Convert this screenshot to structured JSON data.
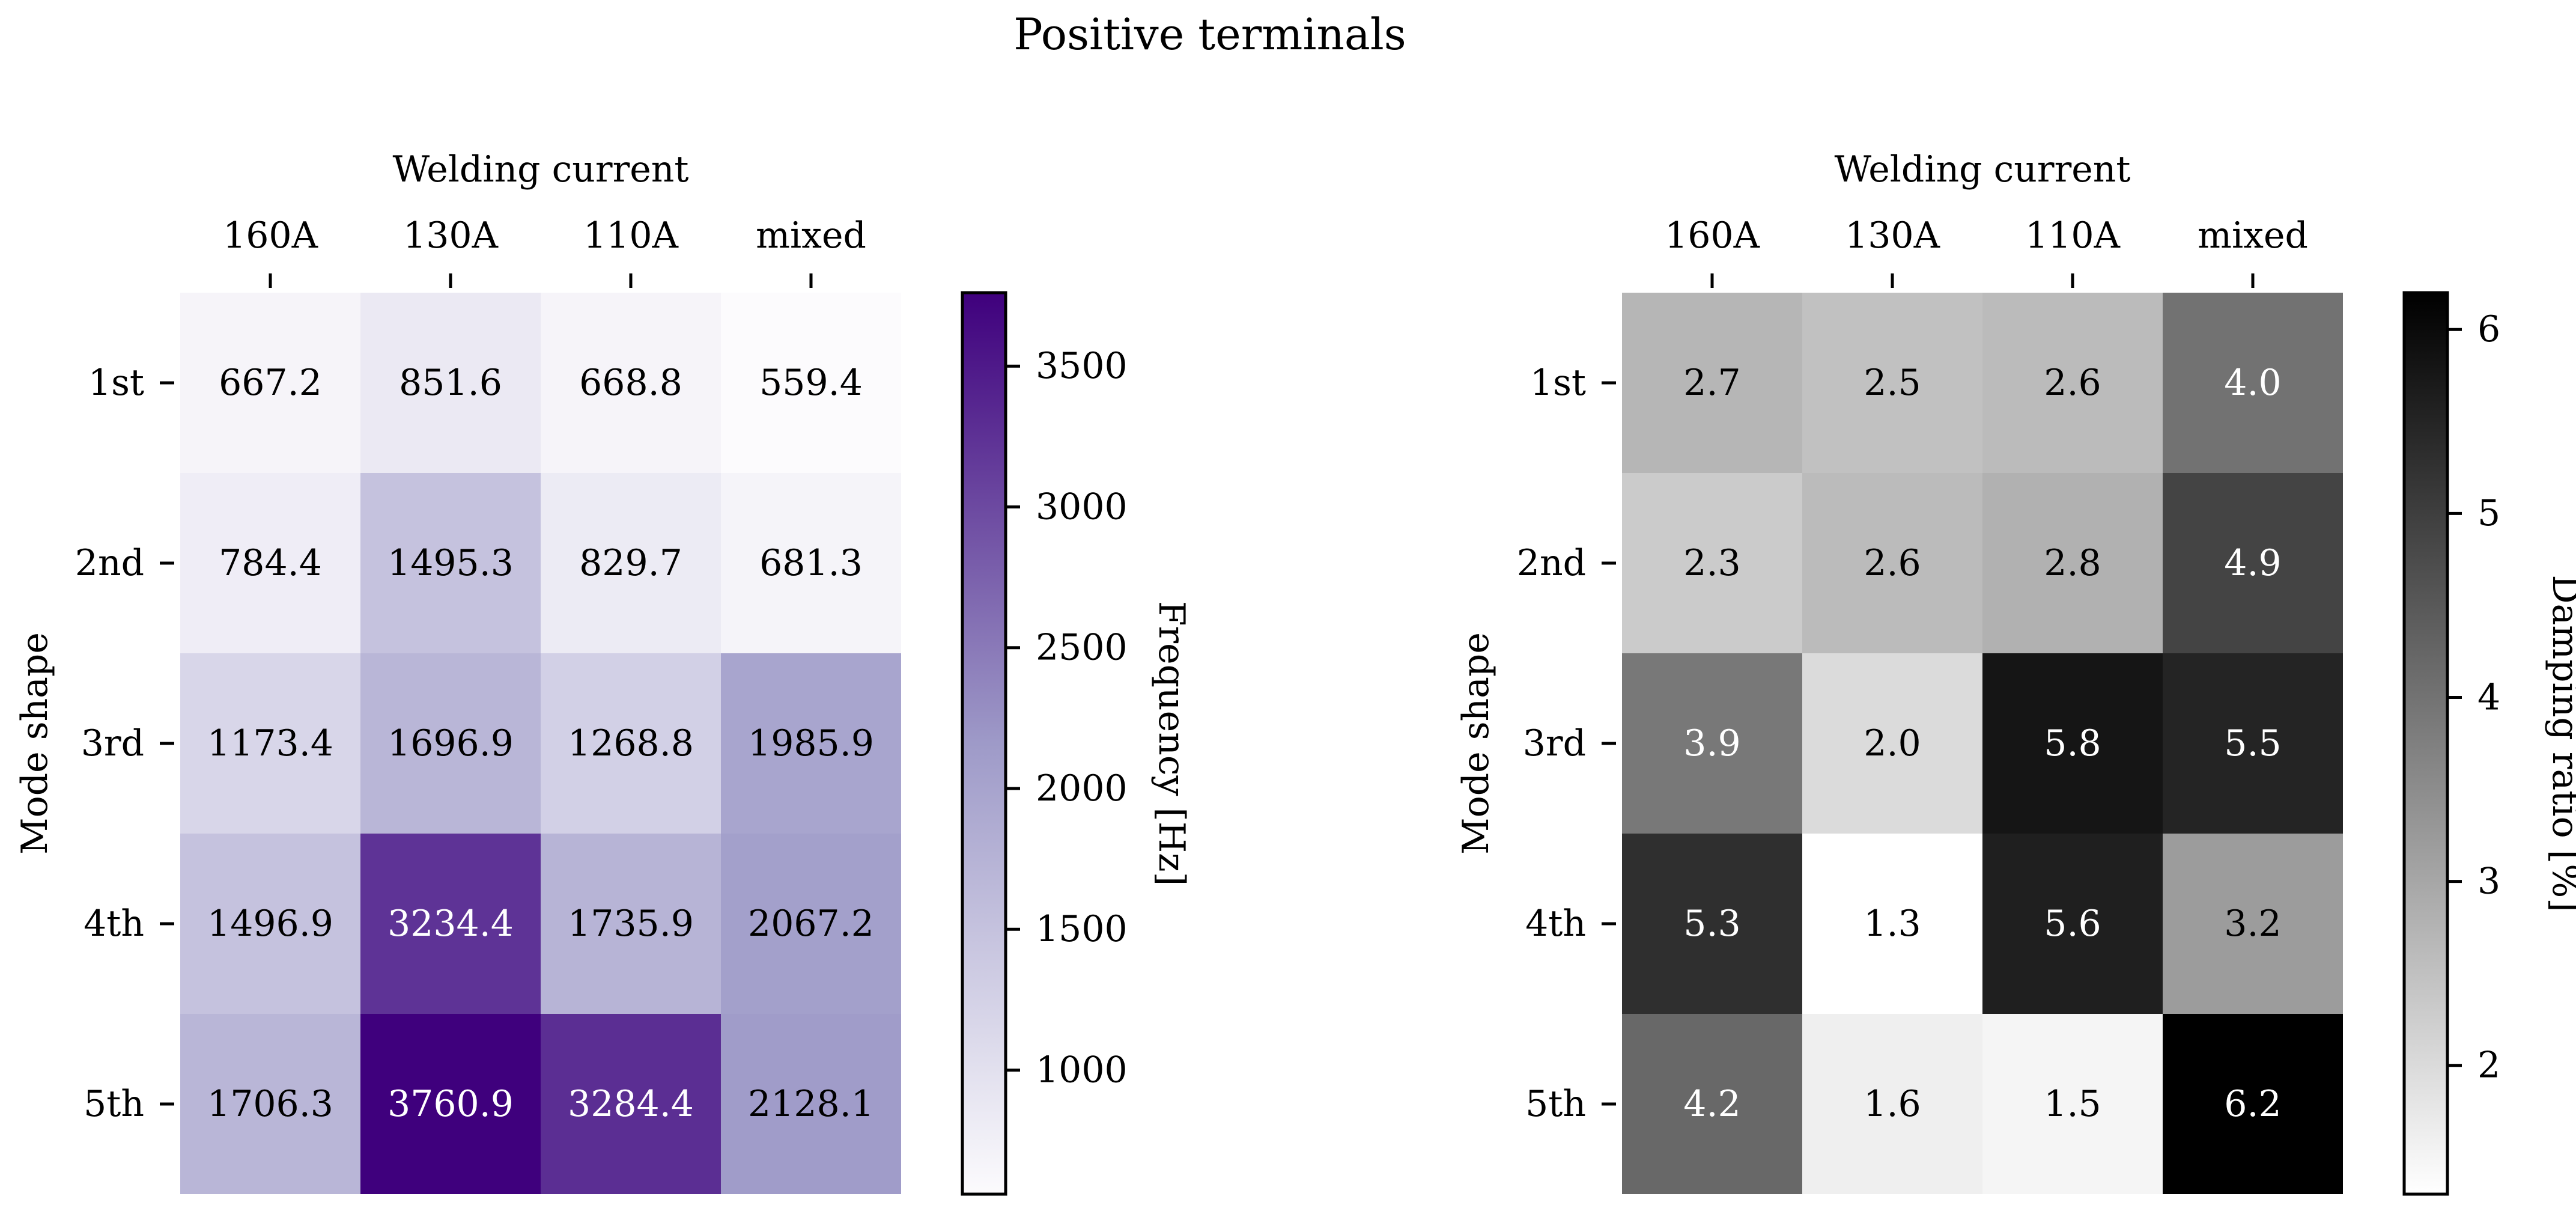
{
  "title": "Positive terminals",
  "colors": {
    "purple_low": "#fcfbfd",
    "purple_mid": "#9e9ac8",
    "purple_high": "#3f007d",
    "gray_low": "#ffffff",
    "gray_high": "#000000",
    "axis": "#000000"
  },
  "chart_data": [
    {
      "type": "heatmap",
      "title": "",
      "xlabel": "Welding current",
      "ylabel": "Mode shape",
      "x_categories": [
        "160A",
        "130A",
        "110A",
        "mixed"
      ],
      "y_categories": [
        "1st",
        "2nd",
        "3rd",
        "4th",
        "5th"
      ],
      "values": [
        [
          667.2,
          851.6,
          668.8,
          559.4
        ],
        [
          784.4,
          1495.3,
          829.7,
          681.3
        ],
        [
          1173.4,
          1696.9,
          1268.8,
          1985.9
        ],
        [
          1496.9,
          3234.4,
          1735.9,
          2067.2
        ],
        [
          1706.3,
          3760.9,
          3284.4,
          2128.1
        ]
      ],
      "value_labels": [
        [
          "667.2",
          "851.6",
          "668.8",
          "559.4"
        ],
        [
          "784.4",
          "1495.3",
          "829.7",
          "681.3"
        ],
        [
          "1173.4",
          "1696.9",
          "1268.8",
          "1985.9"
        ],
        [
          "1496.9",
          "3234.4",
          "1735.9",
          "2067.2"
        ],
        [
          "1706.3",
          "3760.9",
          "3284.4",
          "2128.1"
        ]
      ],
      "colormap": "Purples",
      "colorbar": {
        "label": "Frequency [Hz]",
        "range": [
          559.4,
          3760.9
        ],
        "ticks": [
          1000,
          1500,
          2000,
          2500,
          3000,
          3500
        ],
        "tick_labels": [
          "1000",
          "1500",
          "2000",
          "2500",
          "3000",
          "3500"
        ]
      }
    },
    {
      "type": "heatmap",
      "title": "",
      "xlabel": "Welding current",
      "ylabel": "Mode shape",
      "x_categories": [
        "160A",
        "130A",
        "110A",
        "mixed"
      ],
      "y_categories": [
        "1st",
        "2nd",
        "3rd",
        "4th",
        "5th"
      ],
      "values": [
        [
          2.7,
          2.5,
          2.6,
          4.0
        ],
        [
          2.3,
          2.6,
          2.8,
          4.9
        ],
        [
          3.9,
          2.0,
          5.8,
          5.5
        ],
        [
          5.3,
          1.3,
          5.6,
          3.2
        ],
        [
          4.2,
          1.6,
          1.5,
          6.2
        ]
      ],
      "value_labels": [
        [
          "2.7",
          "2.5",
          "2.6",
          "4.0"
        ],
        [
          "2.3",
          "2.6",
          "2.8",
          "4.9"
        ],
        [
          "3.9",
          "2.0",
          "5.8",
          "5.5"
        ],
        [
          "5.3",
          "1.3",
          "5.6",
          "3.2"
        ],
        [
          "4.2",
          "1.6",
          "1.5",
          "6.2"
        ]
      ],
      "colormap": "Greys",
      "colorbar": {
        "label": "Damping ratio [%]",
        "range": [
          1.3,
          6.2
        ],
        "ticks": [
          2,
          3,
          4,
          5,
          6
        ],
        "tick_labels": [
          "2",
          "3",
          "4",
          "5",
          "6"
        ]
      }
    }
  ]
}
